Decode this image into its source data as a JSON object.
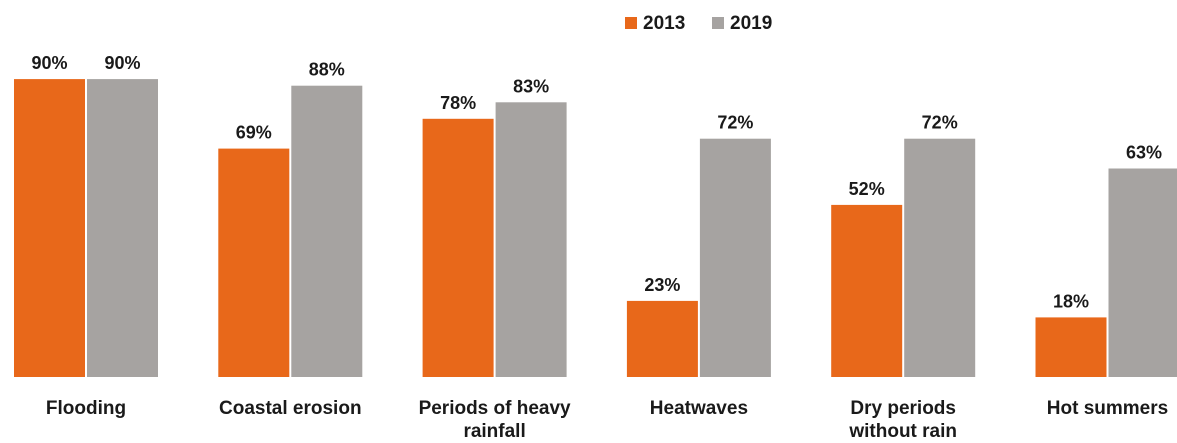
{
  "chart_data": {
    "type": "bar",
    "categories": [
      [
        "Flooding"
      ],
      [
        "Coastal erosion"
      ],
      [
        "Periods of heavy",
        "rainfall"
      ],
      [
        "Heatwaves"
      ],
      [
        "Dry periods",
        "without rain"
      ],
      [
        "Hot summers"
      ]
    ],
    "series": [
      {
        "name": "2013",
        "color": "#e8681a",
        "values": [
          90,
          69,
          78,
          23,
          52,
          18
        ],
        "labels": [
          "90%",
          "69%",
          "78%",
          "23%",
          "52%",
          "18%"
        ]
      },
      {
        "name": "2019",
        "color": "#a6a3a1",
        "values": [
          90,
          88,
          83,
          72,
          72,
          63
        ],
        "labels": [
          "90%",
          "88%",
          "83%",
          "72%",
          "72%",
          "63%"
        ]
      }
    ],
    "legend_position": "top-right",
    "grid": false,
    "ylim": [
      0,
      100
    ]
  }
}
